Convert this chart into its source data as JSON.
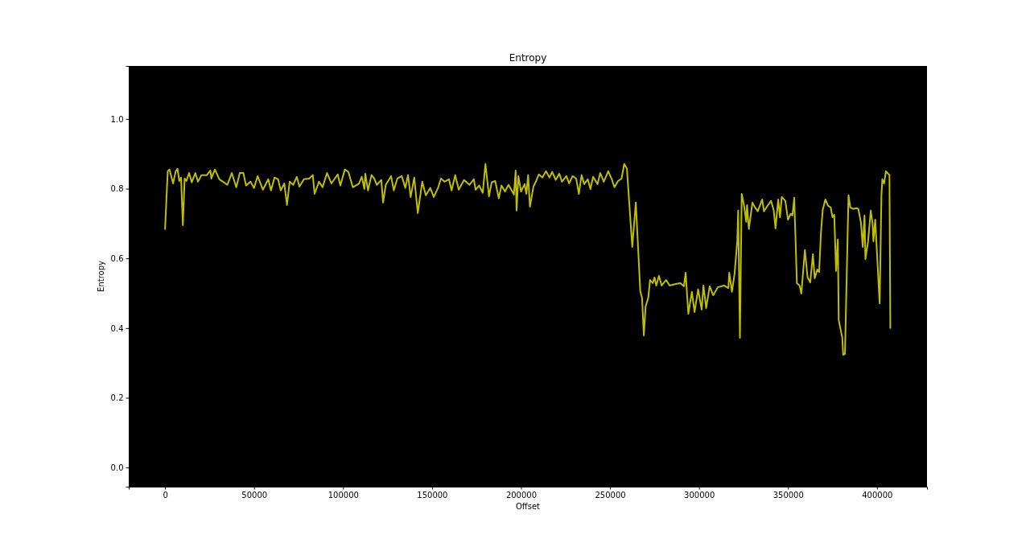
{
  "chart_data": {
    "type": "line",
    "title": "Entropy",
    "xlabel": "Offset",
    "ylabel": "Entropy",
    "xlim": [
      -20400,
      428100
    ],
    "ylim": [
      -0.055,
      1.152
    ],
    "xticks": [
      0,
      50000,
      100000,
      150000,
      200000,
      250000,
      300000,
      350000,
      400000
    ],
    "yticks": [
      {
        "value": 0,
        "label": "0.0"
      },
      {
        "value": 0.2,
        "label": "0.2"
      },
      {
        "value": 0.4,
        "label": "0.4"
      },
      {
        "value": 0.6,
        "label": "0.6"
      },
      {
        "value": 0.8,
        "label": "0.8"
      },
      {
        "value": 1,
        "label": "1.0"
      }
    ],
    "grid": false,
    "marker": "none",
    "line_style": "solid",
    "series": [
      {
        "color": "#bfbf00",
        "x": [
          0,
          1500,
          2500,
          4500,
          6000,
          7000,
          8000,
          9000,
          10000,
          11000,
          12000,
          13500,
          15000,
          17000,
          18500,
          20500,
          23500,
          25500,
          26000,
          28000,
          30500,
          32500,
          35000,
          37500,
          40000,
          42000,
          44000,
          45500,
          48000,
          50000,
          52000,
          55000,
          58000,
          59500,
          61500,
          63500,
          65000,
          67000,
          68500,
          70000,
          72000,
          74000,
          75500,
          78000,
          81000,
          83000,
          84000,
          86500,
          88500,
          91000,
          93500,
          97000,
          98500,
          101000,
          103000,
          105500,
          109000,
          110500,
          112000,
          112500,
          114000,
          116000,
          117500,
          119000,
          121500,
          122500,
          124000,
          127000,
          128500,
          130500,
          133000,
          135000,
          136500,
          138000,
          140000,
          142000,
          144500,
          146500,
          149000,
          151000,
          153500,
          155000,
          157000,
          159500,
          161000,
          163000,
          165000,
          168000,
          171000,
          173500,
          174500,
          176500,
          178500,
          180000,
          182000,
          183500,
          185500,
          187500,
          189000,
          191000,
          193000,
          194500,
          196000,
          197000,
          197500,
          198500,
          200000,
          202000,
          203000,
          204000,
          205000,
          207000,
          208500,
          210000,
          212000,
          214000,
          216000,
          217500,
          219500,
          221500,
          223000,
          225500,
          227000,
          229000,
          231000,
          232500,
          234000,
          235500,
          237500,
          239000,
          240500,
          243000,
          244500,
          246500,
          249000,
          251000,
          252500,
          254500,
          256500,
          258000,
          259500,
          262500,
          264500,
          267000,
          268000,
          269000,
          270000,
          271500,
          272500,
          274000,
          275000,
          276000,
          277500,
          279000,
          281500,
          283500,
          287500,
          289500,
          291500,
          292500,
          294000,
          296000,
          297500,
          299500,
          301500,
          302500,
          304000,
          306000,
          308000,
          310500,
          314000,
          316500,
          317000,
          318500,
          320000,
          321500,
          322000,
          323000,
          324000,
          325500,
          326500,
          327000,
          328000,
          330000,
          331500,
          333000,
          335500,
          336500,
          338500,
          340500,
          342000,
          343000,
          344500,
          345500,
          346500,
          348500,
          350000,
          351500,
          352500,
          353500,
          355000,
          356500,
          357500,
          359500,
          361000,
          362500,
          364000,
          365000,
          366500,
          367500,
          368500,
          369500,
          371000,
          372500,
          374000,
          375000,
          376000,
          377000,
          378000,
          378500,
          380500,
          381000,
          382000,
          384000,
          385000,
          386500,
          388500,
          389500,
          391000,
          392000,
          393000,
          393500,
          395000,
          396500,
          397500,
          398000,
          399000,
          401500,
          402500,
          403000,
          404000,
          405000,
          407000,
          407500
        ],
        "values": [
          0.684,
          0.85,
          0.855,
          0.815,
          0.85,
          0.857,
          0.822,
          0.832,
          0.695,
          0.829,
          0.822,
          0.845,
          0.818,
          0.845,
          0.82,
          0.839,
          0.839,
          0.852,
          0.829,
          0.855,
          0.827,
          0.82,
          0.811,
          0.845,
          0.804,
          0.845,
          0.845,
          0.809,
          0.82,
          0.802,
          0.836,
          0.797,
          0.827,
          0.795,
          0.832,
          0.827,
          0.795,
          0.815,
          0.753,
          0.82,
          0.811,
          0.834,
          0.806,
          0.827,
          0.829,
          0.839,
          0.785,
          0.82,
          0.804,
          0.845,
          0.815,
          0.841,
          0.809,
          0.855,
          0.848,
          0.804,
          0.815,
          0.834,
          0.799,
          0.843,
          0.795,
          0.839,
          0.829,
          0.811,
          0.825,
          0.76,
          0.811,
          0.836,
          0.795,
          0.829,
          0.836,
          0.802,
          0.839,
          0.776,
          0.832,
          0.73,
          0.82,
          0.781,
          0.802,
          0.776,
          0.804,
          0.829,
          0.82,
          0.827,
          0.795,
          0.839,
          0.797,
          0.825,
          0.811,
          0.827,
          0.797,
          0.809,
          0.788,
          0.871,
          0.778,
          0.818,
          0.822,
          0.772,
          0.809,
          0.792,
          0.811,
          0.797,
          0.783,
          0.852,
          0.737,
          0.836,
          0.792,
          0.813,
          0.785,
          0.839,
          0.748,
          0.806,
          0.822,
          0.841,
          0.832,
          0.85,
          0.832,
          0.848,
          0.825,
          0.843,
          0.82,
          0.836,
          0.815,
          0.836,
          0.829,
          0.785,
          0.839,
          0.813,
          0.827,
          0.799,
          0.834,
          0.813,
          0.845,
          0.82,
          0.85,
          0.827,
          0.804,
          0.822,
          0.829,
          0.871,
          0.857,
          0.633,
          0.76,
          0.506,
          0.487,
          0.379,
          0.462,
          0.487,
          0.538,
          0.529,
          0.545,
          0.522,
          0.55,
          0.522,
          0.538,
          0.522,
          0.527,
          0.529,
          0.52,
          0.559,
          0.441,
          0.504,
          0.446,
          0.511,
          0.453,
          0.522,
          0.457,
          0.52,
          0.494,
          0.517,
          0.522,
          0.515,
          0.559,
          0.504,
          0.557,
          0.649,
          0.737,
          0.372,
          0.785,
          0.746,
          0.705,
          0.753,
          0.684,
          0.76,
          0.746,
          0.735,
          0.769,
          0.735,
          0.751,
          0.765,
          0.737,
          0.686,
          0.769,
          0.718,
          0.776,
          0.765,
          0.711,
          0.728,
          0.723,
          0.774,
          0.529,
          0.522,
          0.499,
          0.624,
          0.545,
          0.531,
          0.612,
          0.543,
          0.568,
          0.561,
          0.672,
          0.739,
          0.769,
          0.751,
          0.746,
          0.718,
          0.725,
          0.564,
          0.654,
          0.423,
          0.372,
          0.323,
          0.326,
          0.781,
          0.746,
          0.742,
          0.744,
          0.742,
          0.702,
          0.633,
          0.723,
          0.598,
          0.649,
          0.737,
          0.7,
          0.649,
          0.711,
          0.471,
          0.781,
          0.827,
          0.815,
          0.85,
          0.839,
          0.4
        ]
      }
    ]
  }
}
